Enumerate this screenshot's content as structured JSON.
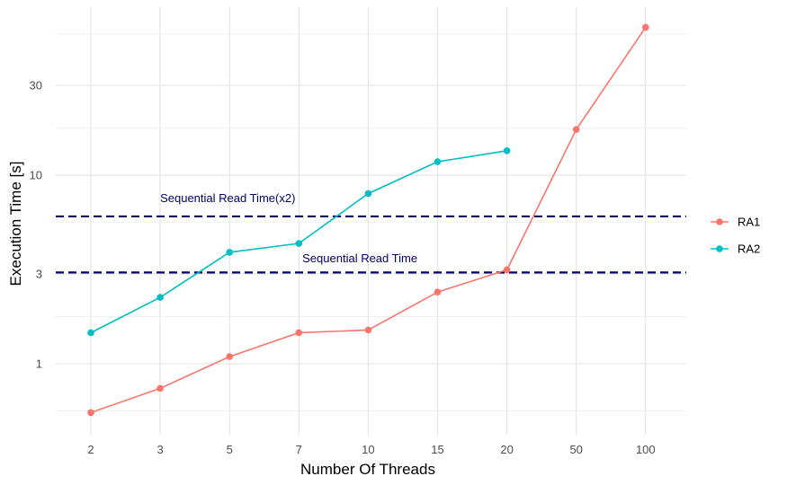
{
  "chart_data": {
    "type": "line",
    "title": "",
    "xlabel": "Number Of Threads",
    "ylabel": "Execution Time [s]",
    "categories": [
      "2",
      "3",
      "5",
      "7",
      "10",
      "15",
      "20",
      "50",
      "100"
    ],
    "y_scale": "log10",
    "ylim": [
      0.42,
      78
    ],
    "y_ticks": [
      1,
      3,
      10,
      30
    ],
    "y_tick_labels": [
      "1",
      "3",
      "10",
      "30"
    ],
    "y_minor_gridlines": [
      0.562,
      1.778,
      5.623,
      17.78,
      56.23
    ],
    "grid": true,
    "legend_position": "right",
    "series": [
      {
        "name": "RA1",
        "color": "#F8766D",
        "values": [
          0.55,
          0.74,
          1.09,
          1.46,
          1.51,
          2.4,
          3.15,
          17.5,
          61
        ]
      },
      {
        "name": "RA2",
        "color": "#00BFC4",
        "values": [
          1.46,
          2.25,
          3.9,
          4.35,
          8.0,
          11.8,
          13.5,
          null,
          null
        ]
      }
    ],
    "reference_lines": [
      {
        "label": "Sequential Read Time(x2)",
        "value": 6.05,
        "color": "#000066",
        "label_category_index": 1,
        "label_value": 7.55
      },
      {
        "label": "Sequential Read Time",
        "value": 3.05,
        "color": "#000066",
        "label_category_index": 3.05,
        "label_value": 3.6
      }
    ]
  }
}
